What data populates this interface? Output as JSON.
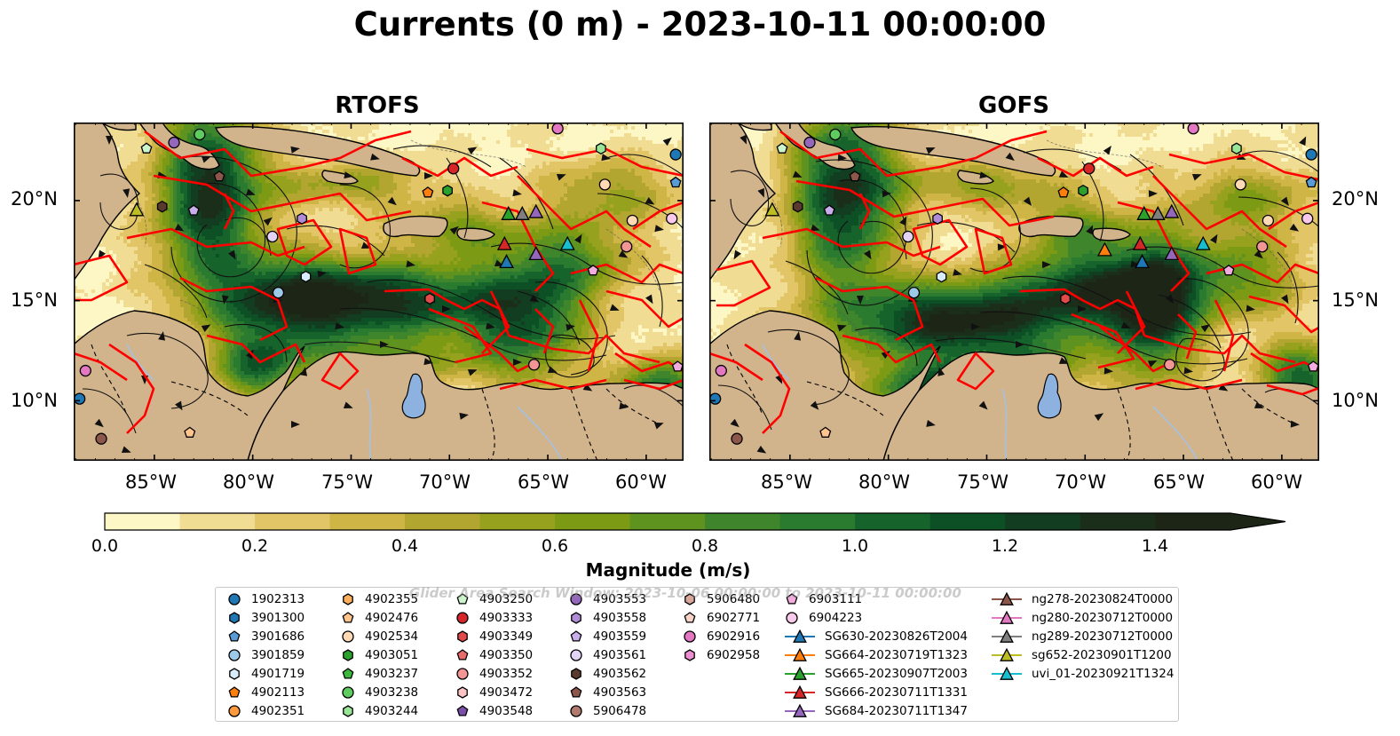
{
  "title": "Currents (0 m) - 2023-10-11 00:00:00",
  "panels": [
    {
      "title": "RTOFS",
      "variant": 0
    },
    {
      "title": "GOFS",
      "variant": 1
    }
  ],
  "lon_ticks": [
    "85°W",
    "80°W",
    "75°W",
    "70°W",
    "65°W",
    "60°W"
  ],
  "lat_ticks": [
    "20°N",
    "15°N",
    "10°N"
  ],
  "colorbar": {
    "label": "Magnitude (m/s)",
    "ticks": [
      "0.0",
      "0.2",
      "0.4",
      "0.6",
      "0.8",
      "1.0",
      "1.2",
      "1.4"
    ],
    "range": [
      0,
      1.5
    ],
    "colors": [
      "#fdf7c6",
      "#f1dc94",
      "#e2c566",
      "#cfb546",
      "#b3a630",
      "#96a11d",
      "#7d9a14",
      "#5f9320",
      "#3f852c",
      "#2a7a30",
      "#16642c",
      "#0e5026",
      "#133d20",
      "#1a2e19",
      "#1d2517"
    ]
  },
  "map_colors": {
    "land": "#d2b48c",
    "lake": "#8eb2e0",
    "search_window": "#ff0000"
  },
  "watermark": "Glider Area Search Window: 2023-10-06 00:00:00 to 2023-10-11 00:00:00",
  "legend": [
    {
      "label": "1902313",
      "marker": "circle",
      "color": "#1f77b4"
    },
    {
      "label": "3901300",
      "marker": "hexagon",
      "color": "#1f77b4"
    },
    {
      "label": "3901686",
      "marker": "pentagon",
      "color": "#5a9bd5"
    },
    {
      "label": "3901859",
      "marker": "circle",
      "color": "#9ecae9"
    },
    {
      "label": "4901719",
      "marker": "hexagon",
      "color": "#d9ecfb"
    },
    {
      "label": "4902113",
      "marker": "pentagon",
      "color": "#ff7f0e"
    },
    {
      "label": "4902351",
      "marker": "circle",
      "color": "#ff9a3c"
    },
    {
      "label": "4902355",
      "marker": "hexagon",
      "color": "#ffae5c"
    },
    {
      "label": "4902476",
      "marker": "pentagon",
      "color": "#ffc58c"
    },
    {
      "label": "4902534",
      "marker": "circle",
      "color": "#ffdab5"
    },
    {
      "label": "4903051",
      "marker": "hexagon",
      "color": "#2ca02c"
    },
    {
      "label": "4903237",
      "marker": "pentagon",
      "color": "#3cb83c"
    },
    {
      "label": "4903238",
      "marker": "circle",
      "color": "#5fcc5f"
    },
    {
      "label": "4903244",
      "marker": "hexagon",
      "color": "#98e598"
    },
    {
      "label": "4903250",
      "marker": "pentagon",
      "color": "#ccf5cc"
    },
    {
      "label": "4903333",
      "marker": "circle",
      "color": "#d62728"
    },
    {
      "label": "4903349",
      "marker": "hexagon",
      "color": "#e04a4a"
    },
    {
      "label": "4903350",
      "marker": "pentagon",
      "color": "#ea6b6b"
    },
    {
      "label": "4903352",
      "marker": "circle",
      "color": "#f29595"
    },
    {
      "label": "4903472",
      "marker": "hexagon",
      "color": "#fbc3c3"
    },
    {
      "label": "4903548",
      "marker": "pentagon",
      "color": "#7b4ea8"
    },
    {
      "label": "4903553",
      "marker": "circle",
      "color": "#9467bd"
    },
    {
      "label": "4903558",
      "marker": "hexagon",
      "color": "#b08cd6"
    },
    {
      "label": "4903559",
      "marker": "pentagon",
      "color": "#c8aeea"
    },
    {
      "label": "4903561",
      "marker": "circle",
      "color": "#e3d3f5"
    },
    {
      "label": "4903562",
      "marker": "hexagon",
      "color": "#5a3a2e"
    },
    {
      "label": "4903563",
      "marker": "pentagon",
      "color": "#8c564b"
    },
    {
      "label": "5906478",
      "marker": "circle",
      "color": "#b07a6e"
    },
    {
      "label": "5906480",
      "marker": "hexagon",
      "color": "#d9a79b"
    },
    {
      "label": "6902771",
      "marker": "pentagon",
      "color": "#f7d3c8"
    },
    {
      "label": "6902916",
      "marker": "circle",
      "color": "#e377c2"
    },
    {
      "label": "6902958",
      "marker": "hexagon",
      "color": "#eb8fd0"
    },
    {
      "label": "6903111",
      "marker": "pentagon",
      "color": "#f2acdd"
    },
    {
      "label": "6904223",
      "marker": "circle",
      "color": "#f7c9ea"
    },
    {
      "label": "SG630-20230826T2004",
      "marker": "glider",
      "color": "#1f77b4"
    },
    {
      "label": "SG664-20230719T1323",
      "marker": "glider",
      "color": "#ff7f0e"
    },
    {
      "label": "SG665-20230907T2003",
      "marker": "glider",
      "color": "#2ca02c"
    },
    {
      "label": "SG666-20230711T1331",
      "marker": "glider",
      "color": "#d62728"
    },
    {
      "label": "SG684-20230711T1347",
      "marker": "glider",
      "color": "#9467bd"
    },
    {
      "label": "ng278-20230824T0000",
      "marker": "glider",
      "color": "#8c564b"
    },
    {
      "label": "ng280-20230712T0000",
      "marker": "glider",
      "color": "#e377c2"
    },
    {
      "label": "ng289-20230712T0000",
      "marker": "glider",
      "color": "#7f7f7f"
    },
    {
      "label": "sg652-20230901T1200",
      "marker": "glider",
      "color": "#bcbd22"
    },
    {
      "label": "uvi_01-20230921T1324",
      "marker": "glider",
      "color": "#17becf"
    }
  ]
}
